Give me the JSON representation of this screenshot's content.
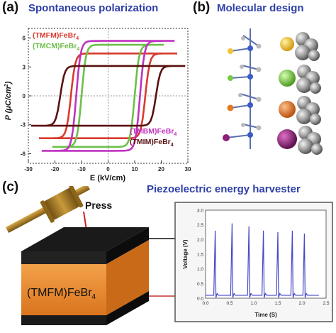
{
  "panel_a": {
    "letter": "(a)",
    "title": "Spontaneous polarization",
    "legend": [
      {
        "text": "(TMFM)FeBr",
        "sub": "4",
        "color": "#d83a2e"
      },
      {
        "text": "(TMCM)FeBr",
        "sub": "4",
        "color": "#6cc04a"
      },
      {
        "text": "(TMBM)FeBr",
        "sub": "4",
        "color": "#c032c0"
      },
      {
        "text": "(TMIM)FeBr",
        "sub": "4",
        "color": "#5a1010"
      }
    ],
    "ylabel": {
      "main": "P (μC/cm",
      "sup": "2",
      "end": ")"
    },
    "xlabel": "E (kV/cm)"
  },
  "panel_b": {
    "letter": "(b)",
    "title": "Molecular design",
    "atom_colors": [
      "#f2c230",
      "#7ac943",
      "#e07a24",
      "#8e1f7a"
    ]
  },
  "panel_c": {
    "letter": "(c)",
    "title": "Piezoelectric energy harvester",
    "press_label": "Press",
    "device_label": {
      "text": "(TMFM)FeBr",
      "sub": "4"
    }
  },
  "chart_data": [
    {
      "type": "line",
      "xlabel": "E (kV/cm)",
      "ylabel": "P (μC/cm²)",
      "xlim": [
        -30,
        30
      ],
      "ylim": [
        -7,
        7
      ],
      "xticks": [
        -30,
        -20,
        -10,
        0,
        10,
        20,
        30
      ],
      "yticks": [
        -6,
        -3,
        0,
        3,
        6
      ],
      "series": [
        {
          "name": "(TMFM)FeBr4",
          "color": "#d83a2e",
          "coercive": 14,
          "saturation": 4.4,
          "xmax": 26
        },
        {
          "name": "(TMCM)FeBr4",
          "color": "#6cc04a",
          "coercive": 10,
          "saturation": 5.3,
          "xmax": 21
        },
        {
          "name": "(TMBM)FeBr4",
          "color": "#c032c0",
          "coercive": 12,
          "saturation": 5.7,
          "xmax": 25
        },
        {
          "name": "(TMIM)FeBr4",
          "color": "#5a1010",
          "coercive": 18,
          "saturation": 3.1,
          "xmax": 29
        }
      ]
    },
    {
      "type": "line",
      "xlabel": "Time (S)",
      "ylabel": "Voltage (V)",
      "xlim": [
        0,
        2.5
      ],
      "ylim": [
        0,
        3.0
      ],
      "xticks": [
        "0.0",
        "0.5",
        "1.0",
        "1.5",
        "2.0",
        "2.5"
      ],
      "yticks": [
        "0.0",
        "0.5",
        "1.0",
        "1.5",
        "2.0",
        "2.5",
        "3.0"
      ],
      "series": [
        {
          "color": "#4848c8",
          "baseline": 0.1,
          "peaks": [
            [
              0.2,
              2.3
            ],
            [
              0.55,
              2.55
            ],
            [
              0.9,
              2.45
            ],
            [
              1.2,
              2.3
            ],
            [
              1.5,
              2.25
            ],
            [
              1.8,
              2.3
            ],
            [
              2.05,
              2.2
            ]
          ]
        }
      ]
    }
  ]
}
